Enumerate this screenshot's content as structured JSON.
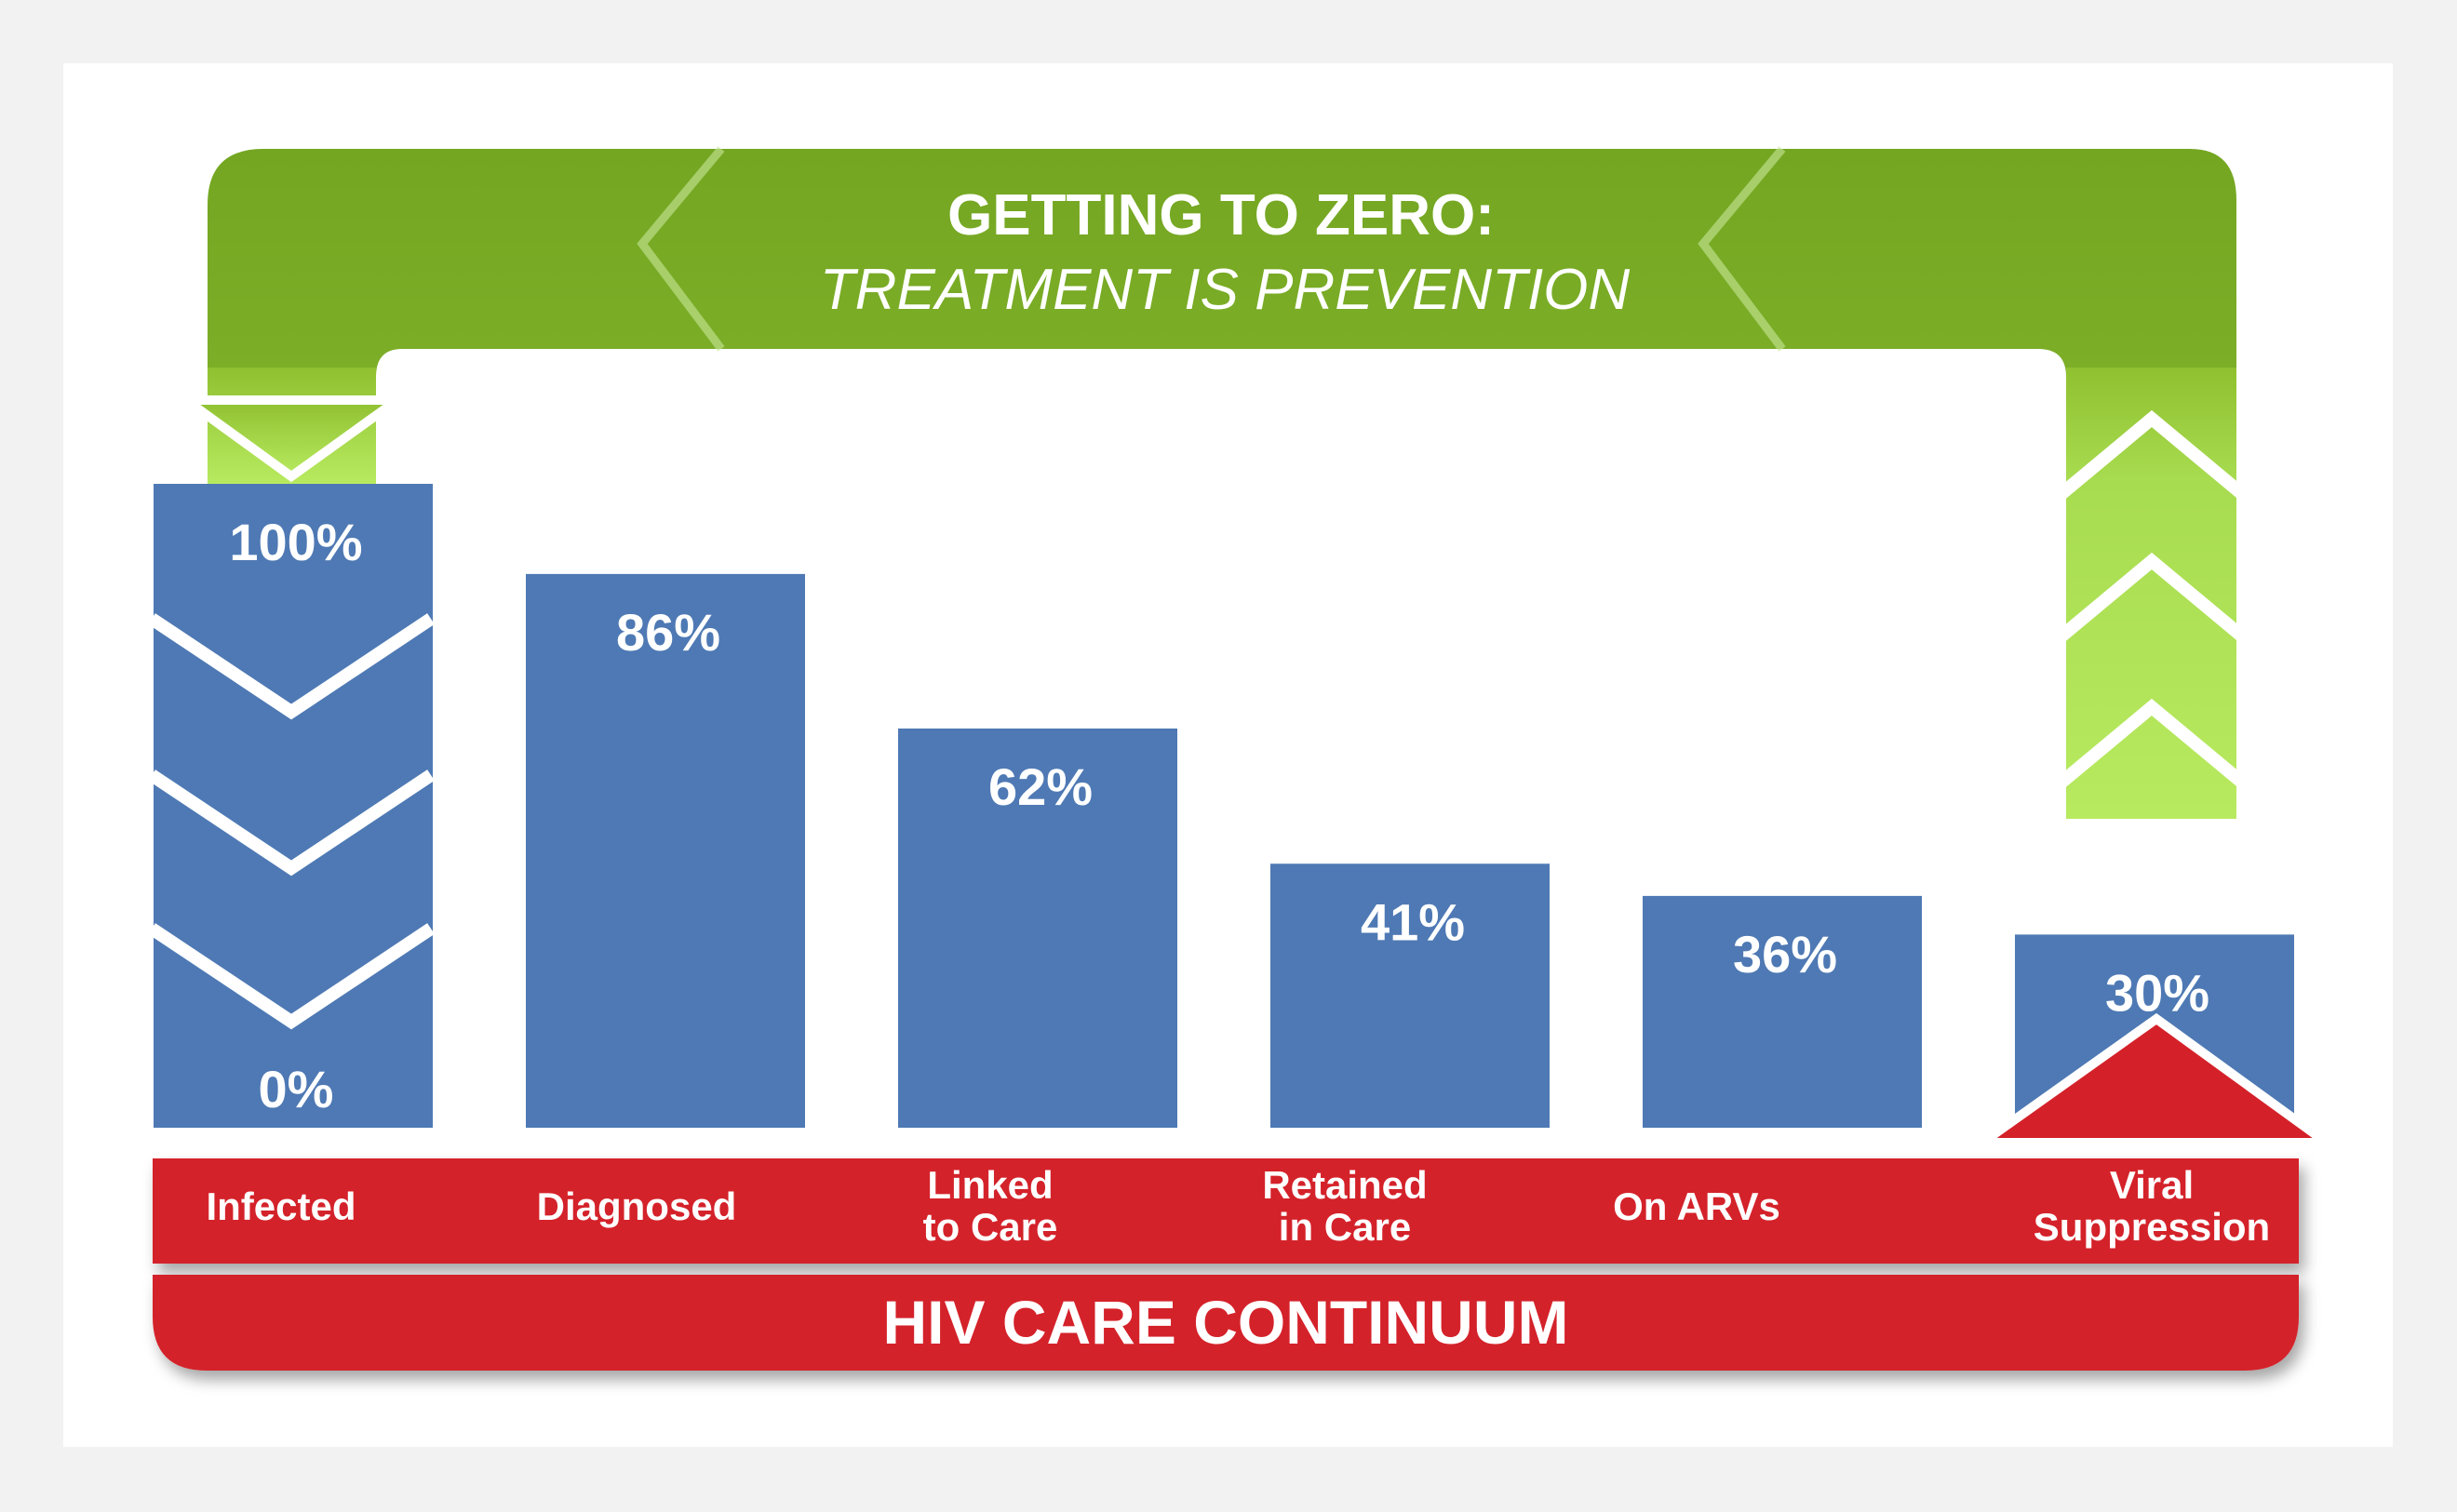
{
  "banner": {
    "title": "GETTING TO ZERO:",
    "subtitle": "TREATMENT IS PREVENTION"
  },
  "footer": {
    "title": "HIV CARE CONTINUUM"
  },
  "first_bar": {
    "top_label": "100%",
    "bottom_label": "0%"
  },
  "colors": {
    "bar": "#4e79b4",
    "red": "#d42129",
    "green_dark": "#7aaa25",
    "green_light": "#b2e65a",
    "background": "#f2f2f2",
    "panel": "#ffffff"
  },
  "chart_data": {
    "type": "bar",
    "title": "HIV CARE CONTINUUM",
    "categories": [
      "Infected",
      "Diagnosed",
      "Linked to Care",
      "Retained in Care",
      "On ARVs",
      "Viral Suppression"
    ],
    "category_lines": [
      [
        "Infected"
      ],
      [
        "Diagnosed"
      ],
      [
        "Linked",
        "to Care"
      ],
      [
        "Retained",
        "in Care"
      ],
      [
        "On ARVs"
      ],
      [
        "Viral",
        "Suppression"
      ]
    ],
    "values": [
      100,
      86,
      62,
      41,
      36,
      30
    ],
    "value_labels": [
      "100%",
      "86%",
      "62%",
      "41%",
      "36%",
      "30%"
    ],
    "ylim": [
      0,
      100
    ],
    "grid": false,
    "legend": "none"
  }
}
